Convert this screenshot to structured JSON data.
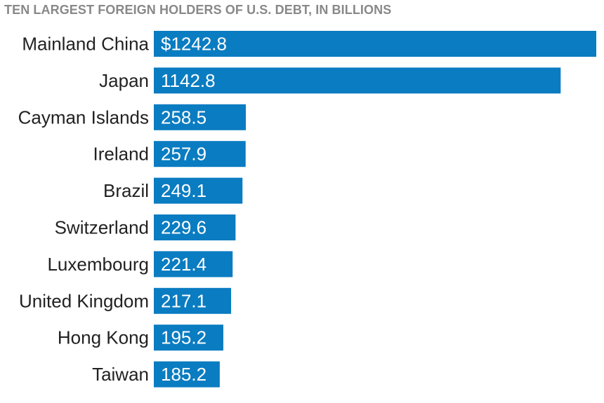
{
  "chart_data": {
    "type": "bar",
    "orientation": "horizontal",
    "title": "TEN LARGEST FOREIGN HOLDERS OF U.S. DEBT, IN BILLIONS",
    "categories": [
      "Mainland China",
      "Japan",
      "Cayman Islands",
      "Ireland",
      "Brazil",
      "Switzerland",
      "Luxembourg",
      "United Kingdom",
      "Hong Kong",
      "Taiwan"
    ],
    "values": [
      1242.8,
      1142.8,
      258.5,
      257.9,
      249.1,
      229.6,
      221.4,
      217.1,
      195.2,
      185.2
    ],
    "data_labels": [
      "$1242.8",
      "1142.8",
      "258.5",
      "257.9",
      "249.1",
      "229.6",
      "221.4",
      "217.1",
      "195.2",
      "185.2"
    ],
    "xlim": [
      0,
      1242.8
    ],
    "grid": false,
    "bar_color": "#0a7cc1",
    "label_color": "#ffffff",
    "category_color": "#222222",
    "title_color": "#888888"
  }
}
